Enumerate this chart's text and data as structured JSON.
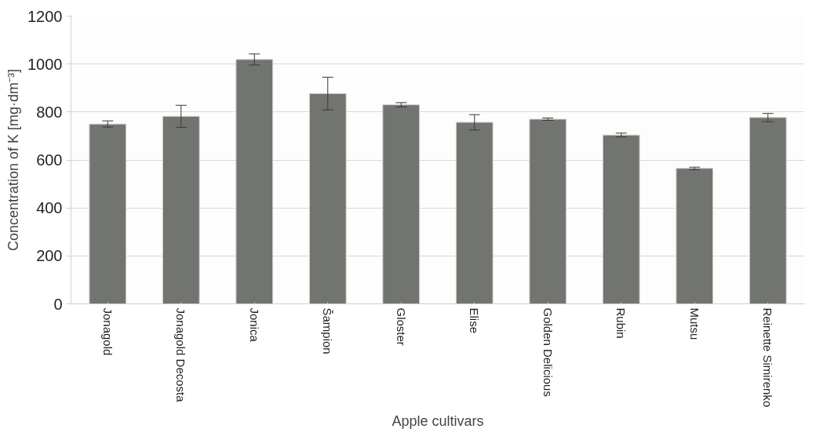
{
  "chart_data": {
    "type": "bar",
    "xlabel": "Apple cultivars",
    "ylabel": "Concentration of K [mg·dm⁻³]",
    "categories": [
      "Jonagold",
      "Jonagold Decosta",
      "Jonica",
      "Šampion",
      "Gloster",
      "Elise",
      "Golden Delicious",
      "Rubin",
      "Mutsu",
      "Reinette Simirenko"
    ],
    "values": [
      750,
      782,
      1019,
      877,
      830,
      757,
      770,
      704,
      565,
      777
    ],
    "errors": [
      13,
      46,
      23,
      68,
      9,
      32,
      5,
      8,
      5,
      17
    ],
    "color": "#727470",
    "ylim": [
      0,
      1200
    ],
    "yticks": [
      0,
      200,
      400,
      600,
      800,
      1000,
      1200
    ],
    "grid": "y"
  }
}
